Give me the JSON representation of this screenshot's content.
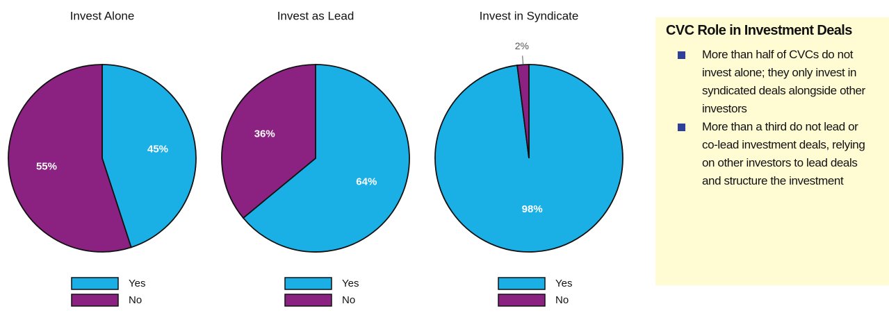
{
  "chart_data": [
    {
      "type": "pie",
      "title": "Invest Alone",
      "categories": [
        "Yes",
        "No"
      ],
      "values": [
        45,
        55
      ],
      "value_labels": [
        "45%",
        "55%"
      ],
      "colors": [
        "#1ab0e6",
        "#8b2282"
      ]
    },
    {
      "type": "pie",
      "title": "Invest as Lead",
      "categories": [
        "Yes",
        "No"
      ],
      "values": [
        64,
        36
      ],
      "value_labels": [
        "64%",
        "36%"
      ],
      "colors": [
        "#1ab0e6",
        "#8b2282"
      ]
    },
    {
      "type": "pie",
      "title": "Invest in Syndicate",
      "categories": [
        "Yes",
        "No"
      ],
      "values": [
        98,
        2
      ],
      "value_labels": [
        "98%",
        "2%"
      ],
      "colors": [
        "#1ab0e6",
        "#8b2282"
      ]
    }
  ],
  "panel": {
    "title": "CVC Role in Investment Deals",
    "bullets": [
      "More than half of CVCs do not invest alone; they only invest in syndicated deals alongside other investors",
      "More than a third do not lead or co-lead investment deals, relying on other investors to lead deals and structure the investment"
    ]
  }
}
